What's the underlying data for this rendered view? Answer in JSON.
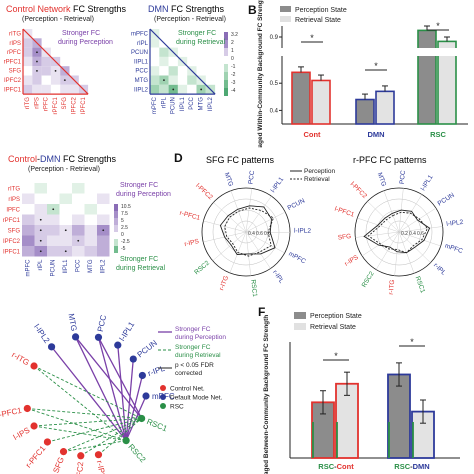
{
  "panel_a": {
    "control": {
      "title_red": "Control Network",
      "title_rest": " FC Strengths",
      "subtitle": "(Perception - Retrieval)",
      "labels": [
        "rITG",
        "rIPS",
        "rPFC",
        "rPFC1",
        "SFG",
        "IPFC2",
        "IPFC1"
      ],
      "annotation": [
        "Stronger FC",
        "during Perception"
      ]
    },
    "dmn": {
      "title_blue": "DMN",
      "title_rest": " FC Strengths",
      "subtitle": "(Perception - Retrieval)",
      "labels": [
        "mPFC",
        "rIPL",
        "PCUN",
        "IIPL1",
        "PCC",
        "MTG",
        "IIPL2"
      ],
      "annotation": [
        "Stronger FC",
        "during Retrieval"
      ],
      "colorbar_ticks": [
        "3.2",
        "2",
        "1",
        "0",
        "-1",
        "-2",
        "-3",
        "-4"
      ]
    },
    "control_dmn": {
      "title_red": "Control",
      "title_sep": "-",
      "title_blue": "DMN",
      "title_rest": " FC Strengths",
      "subtitle": "(Perception - Retrieval)",
      "row_labels": [
        "rITG",
        "rIPS",
        "IPFC",
        "rPFC1",
        "SFG",
        "IPFC2",
        "IPFC1"
      ],
      "col_labels": [
        "mPFC",
        "rIPL",
        "PCUN",
        "IIPL1",
        "PCC",
        "MTG",
        "IIPL2"
      ],
      "annotation_top": [
        "Stronger FC",
        "during Perception"
      ],
      "annotation_bottom": [
        "Stronger FC",
        "during Retrieval"
      ],
      "colorbar_ticks": [
        "10.5",
        "7.5",
        "5",
        "2.5",
        "0",
        "-2.5",
        "-5"
      ]
    }
  },
  "panel_b": {
    "letter": "B",
    "legend": [
      "Perception State",
      "Retrieval State"
    ],
    "ylabel": "Averaged Within-Community Background FC Strength",
    "yticks": [
      "0.9",
      "0.5",
      "0.4"
    ],
    "categories": [
      "Cont",
      "DMN",
      "RSC"
    ],
    "sig": [
      "*",
      "*",
      "*"
    ]
  },
  "panel_d": {
    "letter": "D",
    "sfg": {
      "title": "SFG FC patterns",
      "legend": [
        "Perception",
        "Retrieval"
      ],
      "labels": [
        "MTG",
        "PCC",
        "l-IPL1",
        "PCUN",
        "l-IPL2",
        "mPFC",
        "r-IPL",
        "RSC1",
        "r-ITG",
        "RSC2",
        "r-IPS",
        "r-PFC1",
        "l-PFC2"
      ],
      "rings": [
        "0.4",
        "0.6",
        "0.8"
      ]
    },
    "rpfc": {
      "title": "r-PFC FC patterns",
      "labels": [
        "MTG",
        "PCC",
        "l-IPL1",
        "PCUN",
        "l-IPL2",
        "mPFC",
        "r-IPL",
        "RSC1",
        "r-ITG",
        "RSC2",
        "r-IPS",
        "SFG",
        "l-PFC1",
        "l-PFC2"
      ],
      "rings": [
        "0.2",
        "0.4",
        "0.6"
      ]
    }
  },
  "panel_e": {
    "nodes": [
      "r-ITG",
      "l-IPL2",
      "MTG",
      "PCC",
      "l-IPL1",
      "PCUN",
      "r-IPL",
      "mPFC",
      "RSC1",
      "RSC2",
      "l-IPS",
      "SFG",
      "l-PFC1",
      "r-IPS",
      "l-PFC2",
      "r-PFC1"
    ],
    "legend_lines": [
      "Stronger FC",
      "during Perception",
      "Stronger FC",
      "during Retrieval",
      "p < 0.05 FDR",
      "corrected"
    ],
    "legend_dots": [
      "Control Net.",
      "Default Mode Net.",
      "RSC"
    ]
  },
  "panel_f": {
    "letter": "F",
    "legend": [
      "Perception State",
      "Retrieval State"
    ],
    "ylabel": "Averaged Between-Community Background FC Strength",
    "sig": [
      "*",
      "*"
    ],
    "cat1": {
      "rsc": "RSC",
      "sep": "-",
      "net": "Cont"
    },
    "cat2": {
      "rsc": "RSC",
      "sep": "-",
      "net": "DMN"
    }
  },
  "chart_data": [
    {
      "type": "bar",
      "categories": [
        "Cont",
        "DMN",
        "RSC"
      ],
      "series": [
        {
          "name": "Perception State",
          "values": [
            0.54,
            0.44,
            0.93
          ]
        },
        {
          "name": "Retrieval State",
          "values": [
            0.51,
            0.47,
            0.88
          ]
        }
      ],
      "ylabel": "Averaged Within-Community Background FC Strength"
    },
    {
      "type": "bar",
      "categories": [
        "RSC-Cont",
        "RSC-DMN"
      ],
      "series": [
        {
          "name": "Perception State",
          "values": [
            0.32,
            0.38
          ]
        },
        {
          "name": "Retrieval State",
          "values": [
            0.36,
            0.3
          ]
        }
      ],
      "ylabel": "Averaged Between-Community Background FC Strength"
    }
  ]
}
